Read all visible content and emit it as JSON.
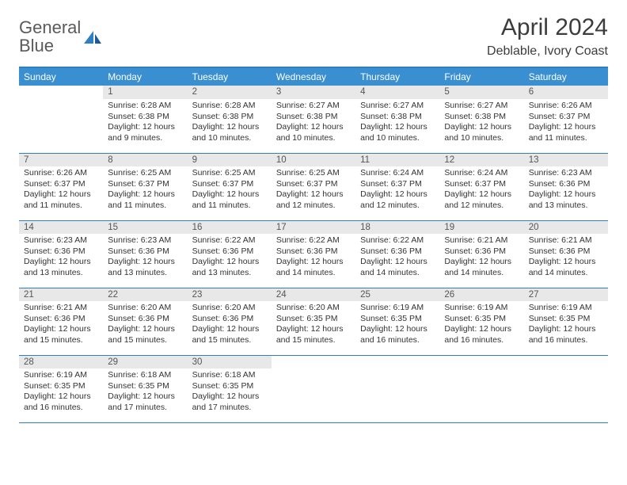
{
  "logo": {
    "word1": "General",
    "word2": "Blue"
  },
  "title": "April 2024",
  "location": "Deblable, Ivory Coast",
  "colors": {
    "header_bg": "#3a8fd0",
    "header_text": "#ffffff",
    "border": "#2f7fc1",
    "daynum_bg": "#e8e8e8",
    "text": "#333333",
    "logo_gray": "#5a5a5a",
    "logo_blue": "#2f7fc1"
  },
  "day_headers": [
    "Sunday",
    "Monday",
    "Tuesday",
    "Wednesday",
    "Thursday",
    "Friday",
    "Saturday"
  ],
  "weeks": [
    {
      "nums": [
        "",
        "1",
        "2",
        "3",
        "4",
        "5",
        "6"
      ],
      "cells": [
        "",
        "Sunrise: 6:28 AM\nSunset: 6:38 PM\nDaylight: 12 hours and 9 minutes.",
        "Sunrise: 6:28 AM\nSunset: 6:38 PM\nDaylight: 12 hours and 10 minutes.",
        "Sunrise: 6:27 AM\nSunset: 6:38 PM\nDaylight: 12 hours and 10 minutes.",
        "Sunrise: 6:27 AM\nSunset: 6:38 PM\nDaylight: 12 hours and 10 minutes.",
        "Sunrise: 6:27 AM\nSunset: 6:38 PM\nDaylight: 12 hours and 10 minutes.",
        "Sunrise: 6:26 AM\nSunset: 6:37 PM\nDaylight: 12 hours and 11 minutes."
      ]
    },
    {
      "nums": [
        "7",
        "8",
        "9",
        "10",
        "11",
        "12",
        "13"
      ],
      "cells": [
        "Sunrise: 6:26 AM\nSunset: 6:37 PM\nDaylight: 12 hours and 11 minutes.",
        "Sunrise: 6:25 AM\nSunset: 6:37 PM\nDaylight: 12 hours and 11 minutes.",
        "Sunrise: 6:25 AM\nSunset: 6:37 PM\nDaylight: 12 hours and 11 minutes.",
        "Sunrise: 6:25 AM\nSunset: 6:37 PM\nDaylight: 12 hours and 12 minutes.",
        "Sunrise: 6:24 AM\nSunset: 6:37 PM\nDaylight: 12 hours and 12 minutes.",
        "Sunrise: 6:24 AM\nSunset: 6:37 PM\nDaylight: 12 hours and 12 minutes.",
        "Sunrise: 6:23 AM\nSunset: 6:36 PM\nDaylight: 12 hours and 13 minutes."
      ]
    },
    {
      "nums": [
        "14",
        "15",
        "16",
        "17",
        "18",
        "19",
        "20"
      ],
      "cells": [
        "Sunrise: 6:23 AM\nSunset: 6:36 PM\nDaylight: 12 hours and 13 minutes.",
        "Sunrise: 6:23 AM\nSunset: 6:36 PM\nDaylight: 12 hours and 13 minutes.",
        "Sunrise: 6:22 AM\nSunset: 6:36 PM\nDaylight: 12 hours and 13 minutes.",
        "Sunrise: 6:22 AM\nSunset: 6:36 PM\nDaylight: 12 hours and 14 minutes.",
        "Sunrise: 6:22 AM\nSunset: 6:36 PM\nDaylight: 12 hours and 14 minutes.",
        "Sunrise: 6:21 AM\nSunset: 6:36 PM\nDaylight: 12 hours and 14 minutes.",
        "Sunrise: 6:21 AM\nSunset: 6:36 PM\nDaylight: 12 hours and 14 minutes."
      ]
    },
    {
      "nums": [
        "21",
        "22",
        "23",
        "24",
        "25",
        "26",
        "27"
      ],
      "cells": [
        "Sunrise: 6:21 AM\nSunset: 6:36 PM\nDaylight: 12 hours and 15 minutes.",
        "Sunrise: 6:20 AM\nSunset: 6:36 PM\nDaylight: 12 hours and 15 minutes.",
        "Sunrise: 6:20 AM\nSunset: 6:36 PM\nDaylight: 12 hours and 15 minutes.",
        "Sunrise: 6:20 AM\nSunset: 6:35 PM\nDaylight: 12 hours and 15 minutes.",
        "Sunrise: 6:19 AM\nSunset: 6:35 PM\nDaylight: 12 hours and 16 minutes.",
        "Sunrise: 6:19 AM\nSunset: 6:35 PM\nDaylight: 12 hours and 16 minutes.",
        "Sunrise: 6:19 AM\nSunset: 6:35 PM\nDaylight: 12 hours and 16 minutes."
      ]
    },
    {
      "nums": [
        "28",
        "29",
        "30",
        "",
        "",
        "",
        ""
      ],
      "cells": [
        "Sunrise: 6:19 AM\nSunset: 6:35 PM\nDaylight: 12 hours and 16 minutes.",
        "Sunrise: 6:18 AM\nSunset: 6:35 PM\nDaylight: 12 hours and 17 minutes.",
        "Sunrise: 6:18 AM\nSunset: 6:35 PM\nDaylight: 12 hours and 17 minutes.",
        "",
        "",
        "",
        ""
      ]
    }
  ]
}
